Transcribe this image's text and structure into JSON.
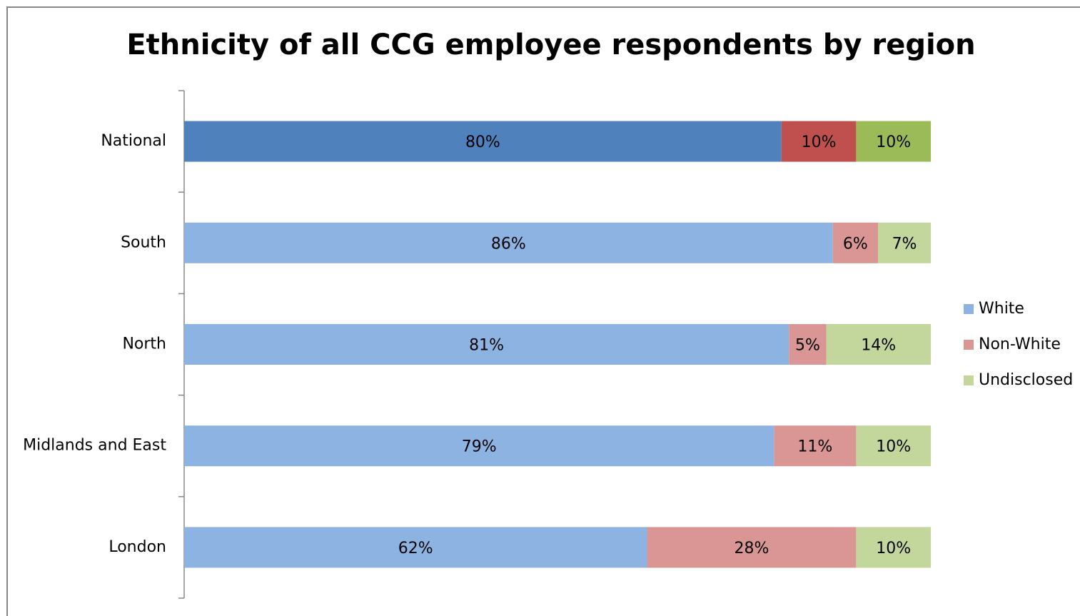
{
  "chart_data": {
    "type": "bar",
    "orientation": "horizontal",
    "stacking": "percent",
    "title": "Ethnicity of all CCG employee respondents by region",
    "categories": [
      "National",
      "South",
      "North",
      "Midlands and East",
      "London"
    ],
    "series": [
      {
        "name": "White",
        "color": "#8db3e2",
        "point_colors": [
          "#4f81bd",
          "#8db3e2",
          "#8db3e2",
          "#8db3e2",
          "#8db3e2"
        ],
        "values": [
          80,
          86,
          81,
          79,
          62
        ],
        "value_labels": [
          "80%",
          "86%",
          "81%",
          "79%",
          "62%"
        ]
      },
      {
        "name": "Non-White",
        "color": "#d99694",
        "point_colors": [
          "#c0504d",
          "#d99694",
          "#d99694",
          "#d99694",
          "#d99694"
        ],
        "values": [
          10,
          6,
          5,
          11,
          28
        ],
        "value_labels": [
          "10%",
          "6%",
          "5%",
          "11%",
          "28%"
        ]
      },
      {
        "name": "Undisclosed",
        "color": "#c3d69b",
        "point_colors": [
          "#9bbb59",
          "#c3d69b",
          "#c3d69b",
          "#c3d69b",
          "#c3d69b"
        ],
        "values": [
          10,
          7,
          14,
          10,
          10
        ],
        "value_labels": [
          "10%",
          "7%",
          "14%",
          "10%",
          "10%"
        ]
      }
    ],
    "legend": "right"
  }
}
